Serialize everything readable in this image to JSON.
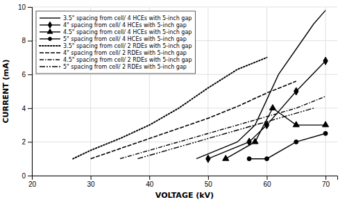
{
  "chart_data": {
    "type": "line",
    "xlabel": "VOLTAGE (kV)",
    "ylabel": "CURRENT (mA)",
    "xlim": [
      20,
      72
    ],
    "ylim": [
      0,
      10
    ],
    "xticks": [
      20,
      30,
      40,
      50,
      60,
      70
    ],
    "yticks": [
      0,
      2,
      4,
      6,
      8,
      10
    ],
    "grid": true,
    "legend": "upper-left",
    "series": [
      {
        "name": "3.5\" spacing from cell/ 4 HCEs with 5-inch gap",
        "color": "black",
        "marker": "none",
        "line_style": "solid",
        "x": [
          48,
          55,
          58,
          60,
          62,
          65,
          68,
          70
        ],
        "values": [
          1.0,
          2.0,
          3.0,
          4.5,
          6.0,
          7.5,
          9.0,
          9.8
        ]
      },
      {
        "name": "4\" spacing from cell/ 4 HCEs with 5-inch gap",
        "color": "black",
        "marker": "diamond",
        "line_style": "solid",
        "x": [
          50,
          57,
          60,
          65,
          70
        ],
        "values": [
          1.0,
          2.0,
          3.0,
          5.0,
          6.8
        ]
      },
      {
        "name": "4.5\" spacing from cell/ 4 HCEs with 5-inch gap",
        "color": "black",
        "marker": "triangle",
        "line_style": "solid",
        "x": [
          53,
          58,
          61,
          65,
          70
        ],
        "values": [
          1.0,
          2.0,
          4.0,
          3.0,
          3.0
        ]
      },
      {
        "name": "5\" spacing from cell/ 4 HCEs with 5-inch gap",
        "color": "black",
        "marker": "circle",
        "line_style": "solid",
        "x": [
          57,
          60,
          65,
          70
        ],
        "values": [
          1.0,
          1.0,
          2.0,
          2.5
        ]
      },
      {
        "name": "3.5\" spacing from cell/ 2 RDEs with 5-inch gap",
        "color": "black",
        "marker": "none",
        "line_style": "dotted",
        "x": [
          27,
          30,
          35,
          40,
          45,
          50,
          55,
          60
        ],
        "values": [
          1.0,
          1.5,
          2.2,
          3.0,
          4.0,
          5.2,
          6.3,
          7.0
        ]
      },
      {
        "name": "4\" spacing from cell/ 2 RDEs with 5-inch gap",
        "color": "black",
        "marker": "none",
        "line_style": "dashed",
        "x": [
          30,
          35,
          40,
          45,
          50,
          55,
          60,
          65
        ],
        "values": [
          1.0,
          1.6,
          2.2,
          2.8,
          3.4,
          4.1,
          4.9,
          5.6
        ]
      },
      {
        "name": "4.5\" spacing from cell/ 2 RDEs with 5-inch gap",
        "color": "black",
        "marker": "none",
        "line_style": "dashdot",
        "x": [
          35,
          40,
          45,
          50,
          55,
          60,
          65,
          70
        ],
        "values": [
          1.0,
          1.5,
          2.0,
          2.5,
          3.0,
          3.5,
          4.0,
          4.7
        ]
      },
      {
        "name": "5\" spacing from cell/ 2 RDEs with 5-inch gap",
        "color": "black",
        "marker": "none",
        "line_style": "dashdotdot",
        "x": [
          38,
          43,
          48,
          53,
          58,
          63,
          68
        ],
        "values": [
          1.0,
          1.5,
          2.0,
          2.5,
          3.0,
          3.5,
          4.0
        ]
      }
    ]
  }
}
